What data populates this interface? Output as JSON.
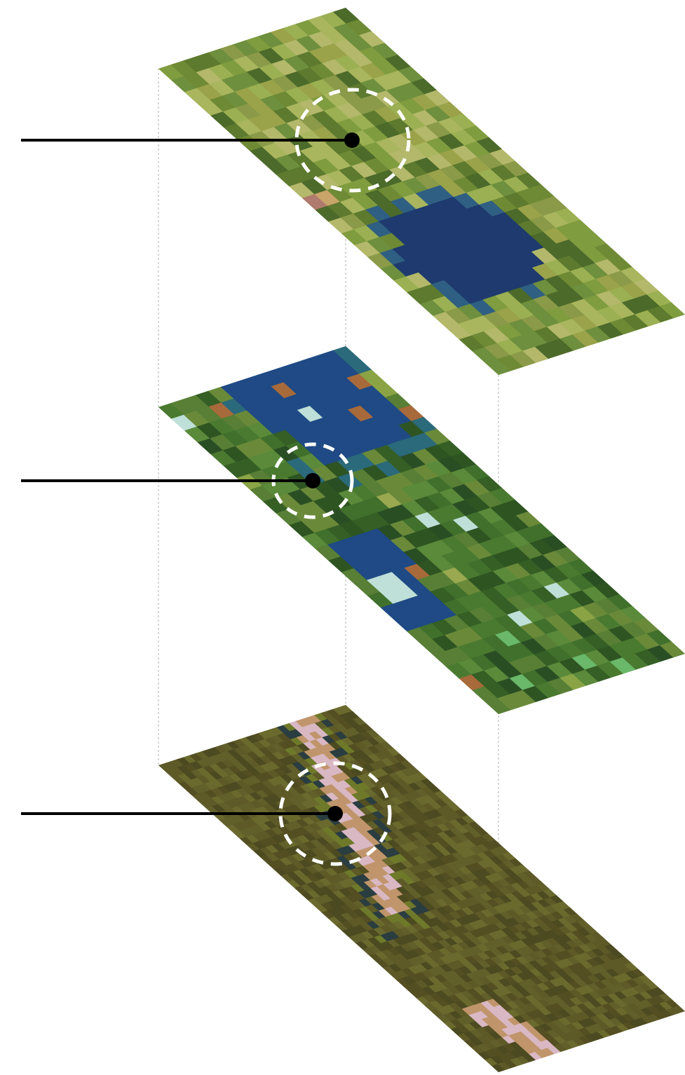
{
  "diagram": {
    "layers": [
      {
        "name": "layer-1",
        "tile_style": "mosaic-satellite",
        "palette": {
          "base": "#8fa24a",
          "shades": [
            "#7f9c3f",
            "#9bb052",
            "#a9b65e",
            "#6f8a35",
            "#8a9a48",
            "#5d7a2e",
            "#b3b86a",
            "#4c6a2a",
            "#9aa24a",
            "#6e8f3d"
          ],
          "water": "#1e3a6e",
          "water_edge": "#2f5f82",
          "accents": [
            "#7b5fa8",
            "#b07a6e",
            "#c9a56a",
            "#69a56a"
          ]
        }
      },
      {
        "name": "layer-2",
        "tile_style": "mosaic-satellite",
        "palette": {
          "base": "#3f6b2a",
          "shades": [
            "#4a7a30",
            "#355f25",
            "#5a8a3a",
            "#2e5422",
            "#6a8a3a",
            "#40702c",
            "#587f35",
            "#2a4e24"
          ],
          "water": "#1f4a85",
          "water_edge": "#2b6a7a",
          "accents": [
            "#8aa445",
            "#9aa850",
            "#a86a3a",
            "#bfe0d8",
            "#6ab86a"
          ]
        }
      },
      {
        "name": "layer-3",
        "tile_style": "smooth-satellite",
        "palette": {
          "base": "#5a5a26",
          "shades": [
            "#615f2a",
            "#544f22",
            "#6b6a2e",
            "#4c4a20",
            "#5e5a28"
          ],
          "feature": "#c0956b",
          "feature_light": "#d9b8c4",
          "veg": "#6e7a2a",
          "dark": "#2a3d40"
        }
      }
    ],
    "callout": {
      "line_color": "#000000",
      "marker_color": "#000000",
      "ring_color": "#ffffff"
    },
    "guide_color": "#b0b0b0"
  }
}
